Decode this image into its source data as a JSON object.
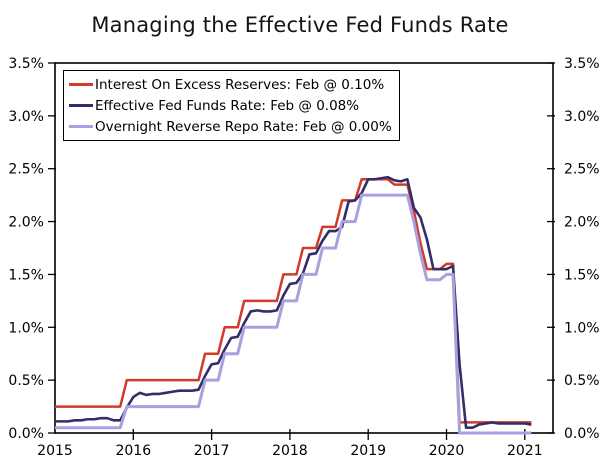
{
  "chart_data": {
    "type": "line",
    "title": "Managing the Effective Fed Funds Rate",
    "xlabel": "",
    "ylabel": "",
    "grid": false,
    "legend_position": "top-left",
    "ylim": [
      0.0,
      3.5
    ],
    "x_domain": [
      2015.0,
      2021.36
    ],
    "x_start": 2015.0,
    "x_step": 0.0833333,
    "x_unit": "monthly, Jan 2015 through Feb 2021",
    "yticks": [
      {
        "value": 0.0,
        "label": "0.0%"
      },
      {
        "value": 0.5,
        "label": "0.5%"
      },
      {
        "value": 1.0,
        "label": "1.0%"
      },
      {
        "value": 1.5,
        "label": "1.5%"
      },
      {
        "value": 2.0,
        "label": "2.0%"
      },
      {
        "value": 2.5,
        "label": "2.5%"
      },
      {
        "value": 3.0,
        "label": "3.0%"
      },
      {
        "value": 3.5,
        "label": "3.5%"
      }
    ],
    "xticks": [
      {
        "value": 2015,
        "label": "2015"
      },
      {
        "value": 2016,
        "label": "2016"
      },
      {
        "value": 2017,
        "label": "2017"
      },
      {
        "value": 2018,
        "label": "2018"
      },
      {
        "value": 2019,
        "label": "2019"
      },
      {
        "value": 2020,
        "label": "2020"
      },
      {
        "value": 2021,
        "label": "2021"
      }
    ],
    "series": [
      {
        "name": "Interest On Excess Reserves",
        "legend_label": "Interest On Excess Reserves: Feb @ 0.10%",
        "color": "#d23a29",
        "line_width": 2.5,
        "latest": {
          "period": "Feb",
          "value_pct": 0.1
        },
        "values": [
          0.25,
          0.25,
          0.25,
          0.25,
          0.25,
          0.25,
          0.25,
          0.25,
          0.25,
          0.25,
          0.25,
          0.5,
          0.5,
          0.5,
          0.5,
          0.5,
          0.5,
          0.5,
          0.5,
          0.5,
          0.5,
          0.5,
          0.5,
          0.75,
          0.75,
          0.75,
          1.0,
          1.0,
          1.0,
          1.25,
          1.25,
          1.25,
          1.25,
          1.25,
          1.25,
          1.5,
          1.5,
          1.5,
          1.75,
          1.75,
          1.75,
          1.95,
          1.95,
          1.95,
          2.2,
          2.2,
          2.2,
          2.4,
          2.4,
          2.4,
          2.4,
          2.4,
          2.35,
          2.35,
          2.35,
          2.1,
          1.8,
          1.55,
          1.55,
          1.55,
          1.6,
          1.6,
          0.1,
          0.1,
          0.1,
          0.1,
          0.1,
          0.1,
          0.1,
          0.1,
          0.1,
          0.1,
          0.1,
          0.1
        ]
      },
      {
        "name": "Effective Fed Funds Rate",
        "legend_label": "Effective Fed Funds Rate: Feb @ 0.08%",
        "color": "#342e68",
        "line_width": 2.6,
        "latest": {
          "period": "Feb",
          "value_pct": 0.08
        },
        "values": [
          0.11,
          0.11,
          0.11,
          0.12,
          0.12,
          0.13,
          0.13,
          0.14,
          0.14,
          0.12,
          0.12,
          0.24,
          0.34,
          0.38,
          0.36,
          0.37,
          0.37,
          0.38,
          0.39,
          0.4,
          0.4,
          0.4,
          0.41,
          0.54,
          0.65,
          0.66,
          0.79,
          0.9,
          0.91,
          1.04,
          1.15,
          1.16,
          1.15,
          1.15,
          1.16,
          1.3,
          1.41,
          1.42,
          1.51,
          1.69,
          1.7,
          1.82,
          1.91,
          1.91,
          1.95,
          2.19,
          2.2,
          2.27,
          2.4,
          2.4,
          2.41,
          2.42,
          2.39,
          2.38,
          2.4,
          2.13,
          2.04,
          1.83,
          1.55,
          1.55,
          1.55,
          1.58,
          0.65,
          0.05,
          0.05,
          0.08,
          0.09,
          0.1,
          0.09,
          0.09,
          0.09,
          0.09,
          0.09,
          0.08
        ]
      },
      {
        "name": "Overnight Reverse Repo Rate",
        "legend_label": "Overnight Reverse Repo Rate: Feb @ 0.00%",
        "color": "#a8a0df",
        "line_width": 3.0,
        "latest": {
          "period": "Feb",
          "value_pct": 0.0
        },
        "values": [
          0.05,
          0.05,
          0.05,
          0.05,
          0.05,
          0.05,
          0.05,
          0.05,
          0.05,
          0.05,
          0.05,
          0.25,
          0.25,
          0.25,
          0.25,
          0.25,
          0.25,
          0.25,
          0.25,
          0.25,
          0.25,
          0.25,
          0.25,
          0.5,
          0.5,
          0.5,
          0.75,
          0.75,
          0.75,
          1.0,
          1.0,
          1.0,
          1.0,
          1.0,
          1.0,
          1.25,
          1.25,
          1.25,
          1.5,
          1.5,
          1.5,
          1.75,
          1.75,
          1.75,
          2.0,
          2.0,
          2.0,
          2.25,
          2.25,
          2.25,
          2.25,
          2.25,
          2.25,
          2.25,
          2.25,
          2.0,
          1.7,
          1.45,
          1.45,
          1.45,
          1.5,
          1.5,
          0.0,
          0.0,
          0.0,
          0.0,
          0.0,
          0.0,
          0.0,
          0.0,
          0.0,
          0.0,
          0.0,
          0.0
        ]
      }
    ],
    "frame_color": "#000000",
    "background_color": "#ffffff"
  }
}
